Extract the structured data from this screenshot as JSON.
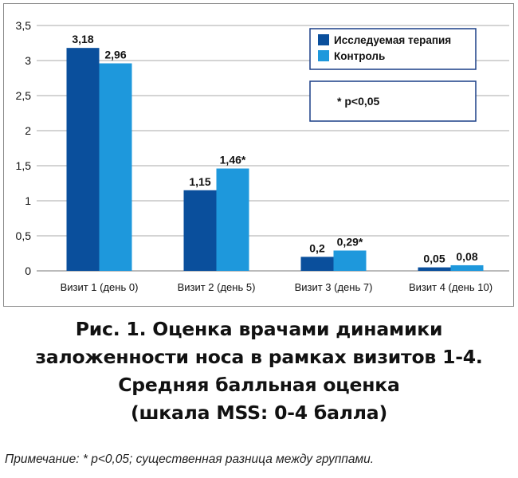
{
  "chart_data": {
    "type": "bar",
    "categories": [
      "Визит 1 (день 0)",
      "Визит 2 (день 5)",
      "Визит 3 (день 7)",
      "Визит 4 (день 10)"
    ],
    "series": [
      {
        "name": "Исследуемая терапия",
        "values": [
          3.18,
          1.15,
          0.2,
          0.05
        ],
        "labels": [
          "3,18",
          "1,15",
          "0,2",
          "0,05"
        ],
        "color": "#0a4f9c"
      },
      {
        "name": "Контроль",
        "values": [
          2.96,
          1.46,
          0.29,
          0.08
        ],
        "labels": [
          "2,96",
          "1,46*",
          "0,29*",
          "0,08"
        ],
        "color": "#1e98dc"
      }
    ],
    "ylim": [
      0,
      3.5
    ],
    "yticks": [
      0,
      0.5,
      1,
      1.5,
      2,
      2.5,
      3,
      3.5
    ],
    "ytick_labels": [
      "0",
      "0,5",
      "1",
      "1,5",
      "2",
      "2,5",
      "3",
      "3,5"
    ],
    "grid": true,
    "legend": "top-right",
    "annotation": "* p<0,05"
  },
  "caption": {
    "line1": "Рис. 1. Оценка врачами динамики",
    "line2": "заложенности носа в рамках визитов 1-4.",
    "line3": "Средняя балльная оценка",
    "line4": "(шкала MSS: 0-4 балла)"
  },
  "note": "Примечание: * p<0,05; существенная разница между группами."
}
